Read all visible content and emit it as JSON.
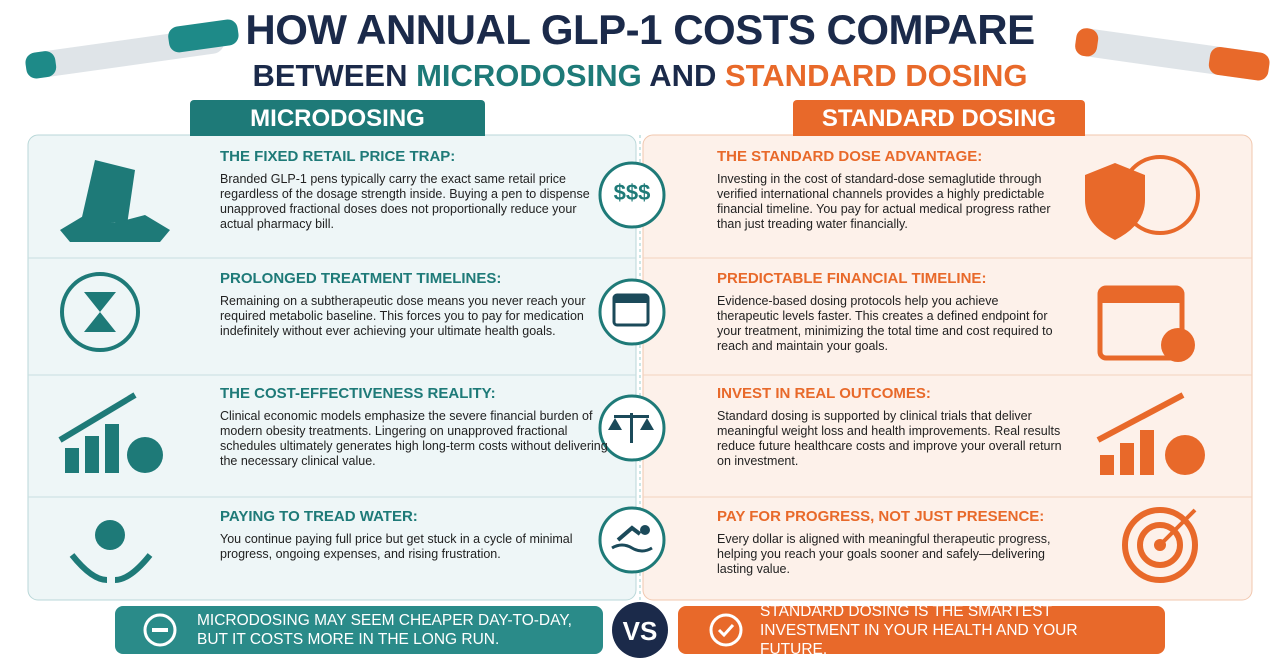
{
  "header": {
    "title": "HOW ANNUAL GLP-1 COSTS COMPARE",
    "subtitle": {
      "before": "BETWEEN",
      "left": "MICRODOSING",
      "middle": "AND",
      "right": "STANDARD DOSING"
    }
  },
  "columns": [
    {
      "heading": "MICRODOSING",
      "rows": [
        {
          "title": "THE FIXED RETAIL PRICE TRAP:",
          "body": "Branded GLP-1 pens typically carry the exact same retail price regardless of the dosage strength inside. Buying a pen to dispense unapproved fractional doses does not proportionally reduce your actual pharmacy bill."
        },
        {
          "title": "PROLONGED TREATMENT TIMELINES:",
          "body": "Remaining on a subtherapeutic dose means you never reach your required metabolic baseline. This forces you to pay for medication indefinitely without ever achieving your ultimate health goals."
        },
        {
          "title": "THE COST-EFFECTIVENESS REALITY:",
          "body": "Clinical economic models emphasize the severe financial burden of modern obesity treatments. Lingering on unapproved fractional schedules ultimately generates high long-term costs without delivering the necessary clinical value."
        },
        {
          "title": "PAYING TO TREAD WATER:",
          "body": "You continue paying full price but get stuck in a cycle of minimal progress, ongoing expenses, and rising frustration."
        }
      ]
    },
    {
      "heading": "STANDARD DOSING",
      "rows": [
        {
          "title": "THE STANDARD DOSE ADVANTAGE:",
          "body": "Investing in the cost of standard-dose semaglutide through verified international channels provides a highly predictable financial timeline. You pay for actual medical progress rather than just treading water financially."
        },
        {
          "title": "PREDICTABLE FINANCIAL TIMELINE:",
          "body": "Evidence-based dosing protocols help you achieve therapeutic levels faster. This creates a defined endpoint for your treatment, minimizing the total time and cost required to reach and maintain your goals."
        },
        {
          "title": "INVEST IN REAL OUTCOMES:",
          "body": "Standard dosing is supported by clinical trials that deliver meaningful weight loss and health improvements. Real results reduce future healthcare costs and improve your overall return on investment."
        },
        {
          "title": "PAY FOR PROGRESS, NOT JUST PRESENCE:",
          "body": "Every dollar is aligned with meaningful therapeutic progress, helping you reach your goals sooner and safely—delivering lasting value."
        }
      ]
    }
  ],
  "center_icon_text": "$$$",
  "footer": {
    "left": "MICRODOSING MAY SEEM CHEAPER DAY-TO-DAY, BUT IT COSTS MORE IN THE LONG RUN.",
    "vs": "VS",
    "right": "STANDARD DOSING IS THE SMARTEST INVESTMENT IN YOUR HEALTH AND YOUR FUTURE."
  }
}
